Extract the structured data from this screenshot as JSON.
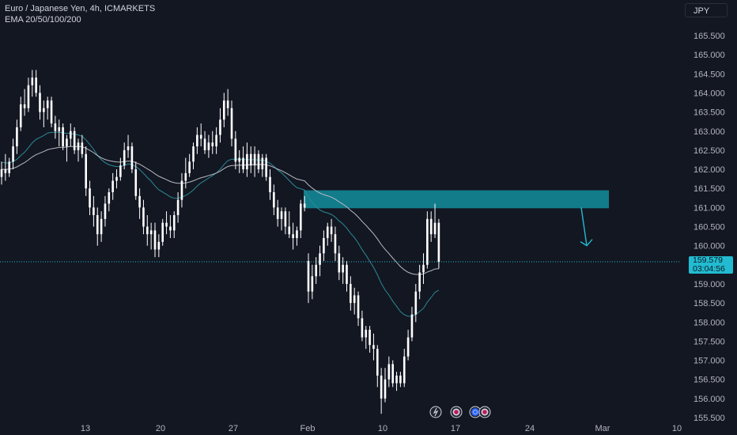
{
  "legend": {
    "symbol": "Euro / Japanese Yen, 4h, ICMARKETS",
    "indicator": "EMA 20/50/100/200"
  },
  "currency_button": "JPY",
  "price_tag": {
    "price": "159.579",
    "countdown": "03:04:56"
  },
  "colors": {
    "background": "#131722",
    "candle": "#ffffff",
    "zone": "#137c8b",
    "accent": "#22bbd1",
    "ema_fast": "#2a8a96",
    "ema_slow": "#b7bac4",
    "axis_text": "#b2b5be"
  },
  "event_icons": [
    "lightning-icon",
    "flag-icon",
    "globe-icon",
    "flag-icon"
  ],
  "chart_data": {
    "type": "candlestick",
    "y_ticks": [
      "165.500",
      "165.000",
      "164.500",
      "164.000",
      "163.500",
      "163.000",
      "162.500",
      "162.000",
      "161.500",
      "161.000",
      "160.500",
      "160.000",
      "159.500",
      "159.000",
      "158.500",
      "158.000",
      "157.500",
      "157.000",
      "156.500",
      "156.000",
      "155.500"
    ],
    "x_ticks": [
      "13",
      "20",
      "27",
      "Feb",
      "10",
      "17",
      "24",
      "Mar",
      "10"
    ],
    "ylim": [
      155.5,
      165.5
    ],
    "current_price": 159.579,
    "zone": {
      "from": 160.98,
      "to": 161.45
    },
    "projection": {
      "from": 161.0,
      "to": 160.0
    },
    "ohlc": [
      [
        161.8,
        162.2,
        161.6,
        162.0
      ],
      [
        162.0,
        162.4,
        161.7,
        161.9
      ],
      [
        161.9,
        162.3,
        161.8,
        162.2
      ],
      [
        162.2,
        162.8,
        162.0,
        162.6
      ],
      [
        162.6,
        163.3,
        162.4,
        163.1
      ],
      [
        163.1,
        163.9,
        163.0,
        163.7
      ],
      [
        163.7,
        164.1,
        163.4,
        163.6
      ],
      [
        163.6,
        164.4,
        163.5,
        164.2
      ],
      [
        164.2,
        164.6,
        163.9,
        164.4
      ],
      [
        164.4,
        164.6,
        163.9,
        164.0
      ],
      [
        164.0,
        164.2,
        163.3,
        163.5
      ],
      [
        163.5,
        163.8,
        163.1,
        163.6
      ],
      [
        163.6,
        163.9,
        163.3,
        163.8
      ],
      [
        163.8,
        163.9,
        163.1,
        163.2
      ],
      [
        163.2,
        163.4,
        162.8,
        163.0
      ],
      [
        163.0,
        163.3,
        162.6,
        163.1
      ],
      [
        163.1,
        163.2,
        162.5,
        162.6
      ],
      [
        162.6,
        162.9,
        162.2,
        162.8
      ],
      [
        162.8,
        163.2,
        162.6,
        163.0
      ],
      [
        163.0,
        163.1,
        162.4,
        162.5
      ],
      [
        162.5,
        162.8,
        162.2,
        162.7
      ],
      [
        162.7,
        162.9,
        162.3,
        162.4
      ],
      [
        162.4,
        162.6,
        161.3,
        161.5
      ],
      [
        161.5,
        161.7,
        160.8,
        161.0
      ],
      [
        161.0,
        161.3,
        160.5,
        160.8
      ],
      [
        160.8,
        161.0,
        160.0,
        160.3
      ],
      [
        160.3,
        160.9,
        160.1,
        160.7
      ],
      [
        160.7,
        161.3,
        160.5,
        161.1
      ],
      [
        161.1,
        161.5,
        160.9,
        161.4
      ],
      [
        161.4,
        161.9,
        161.2,
        161.7
      ],
      [
        161.7,
        162.0,
        161.5,
        161.8
      ],
      [
        161.8,
        162.3,
        161.7,
        162.1
      ],
      [
        162.1,
        162.7,
        162.0,
        162.5
      ],
      [
        162.5,
        162.9,
        162.3,
        162.6
      ],
      [
        162.6,
        162.7,
        161.9,
        162.0
      ],
      [
        162.0,
        162.2,
        161.2,
        161.3
      ],
      [
        161.3,
        161.5,
        160.7,
        161.0
      ],
      [
        161.0,
        161.2,
        160.3,
        160.5
      ],
      [
        160.5,
        160.8,
        160.0,
        160.3
      ],
      [
        160.3,
        160.6,
        159.9,
        160.4
      ],
      [
        160.4,
        160.6,
        159.7,
        159.9
      ],
      [
        159.9,
        160.3,
        159.7,
        160.1
      ],
      [
        160.1,
        160.7,
        160.0,
        160.6
      ],
      [
        160.6,
        160.9,
        160.3,
        160.5
      ],
      [
        160.5,
        160.8,
        160.2,
        160.4
      ],
      [
        160.4,
        160.9,
        160.2,
        160.8
      ],
      [
        160.8,
        161.4,
        160.6,
        161.2
      ],
      [
        161.2,
        161.9,
        161.0,
        161.7
      ],
      [
        161.7,
        162.3,
        161.5,
        161.9
      ],
      [
        161.9,
        162.4,
        161.8,
        162.2
      ],
      [
        162.2,
        162.7,
        162.0,
        162.6
      ],
      [
        162.6,
        163.1,
        162.4,
        162.9
      ],
      [
        162.9,
        163.2,
        162.6,
        162.8
      ],
      [
        162.8,
        163.0,
        162.4,
        162.5
      ],
      [
        162.5,
        162.9,
        162.3,
        162.7
      ],
      [
        162.7,
        163.0,
        162.4,
        162.6
      ],
      [
        162.6,
        163.1,
        162.4,
        162.9
      ],
      [
        162.9,
        163.6,
        162.7,
        163.3
      ],
      [
        163.3,
        164.0,
        163.1,
        163.8
      ],
      [
        163.8,
        164.1,
        163.4,
        163.6
      ],
      [
        163.6,
        163.8,
        162.6,
        162.8
      ],
      [
        162.8,
        163.0,
        162.0,
        162.2
      ],
      [
        162.2,
        162.5,
        161.9,
        162.3
      ],
      [
        162.3,
        162.6,
        161.9,
        162.0
      ],
      [
        162.0,
        162.7,
        161.8,
        162.4
      ],
      [
        162.4,
        162.6,
        161.9,
        162.1
      ],
      [
        162.1,
        162.6,
        161.8,
        162.4
      ],
      [
        162.4,
        162.5,
        161.9,
        162.0
      ],
      [
        162.0,
        162.4,
        161.8,
        162.3
      ],
      [
        162.3,
        162.4,
        161.7,
        161.8
      ],
      [
        161.8,
        162.0,
        161.2,
        161.4
      ],
      [
        161.4,
        161.6,
        160.8,
        161.0
      ],
      [
        161.0,
        161.2,
        160.5,
        160.7
      ],
      [
        160.7,
        161.0,
        160.4,
        160.9
      ],
      [
        160.9,
        161.0,
        160.3,
        160.5
      ],
      [
        160.5,
        160.9,
        160.2,
        160.3
      ],
      [
        160.3,
        160.6,
        159.9,
        160.2
      ],
      [
        160.2,
        160.5,
        160.0,
        160.4
      ],
      [
        160.4,
        161.2,
        160.2,
        161.1
      ],
      [
        161.1,
        161.3,
        160.9,
        161.0
      ],
      [
        159.6,
        159.8,
        158.5,
        158.8
      ],
      [
        158.8,
        159.5,
        158.6,
        159.2
      ],
      [
        159.2,
        159.7,
        159.0,
        159.5
      ],
      [
        159.5,
        160.0,
        159.2,
        159.8
      ],
      [
        159.8,
        160.4,
        159.6,
        160.2
      ],
      [
        160.2,
        160.6,
        160.0,
        160.5
      ],
      [
        160.5,
        160.7,
        160.1,
        160.3
      ],
      [
        160.3,
        160.5,
        159.6,
        159.8
      ],
      [
        159.8,
        160.0,
        159.1,
        159.3
      ],
      [
        159.3,
        159.7,
        159.0,
        159.5
      ],
      [
        159.5,
        159.6,
        158.8,
        159.0
      ],
      [
        159.0,
        159.2,
        158.3,
        158.5
      ],
      [
        158.5,
        158.9,
        158.2,
        158.7
      ],
      [
        158.7,
        158.8,
        157.9,
        158.1
      ],
      [
        158.1,
        158.3,
        157.5,
        157.6
      ],
      [
        157.6,
        157.9,
        157.3,
        157.8
      ],
      [
        157.8,
        157.9,
        157.2,
        157.4
      ],
      [
        157.4,
        157.7,
        157.0,
        157.3
      ],
      [
        157.3,
        157.4,
        156.3,
        156.6
      ],
      [
        156.6,
        156.8,
        155.6,
        156.0
      ],
      [
        156.0,
        156.8,
        155.9,
        156.5
      ],
      [
        156.5,
        157.1,
        156.3,
        156.9
      ],
      [
        156.9,
        157.0,
        156.3,
        156.4
      ],
      [
        156.4,
        156.7,
        156.2,
        156.6
      ],
      [
        156.6,
        156.7,
        156.3,
        156.4
      ],
      [
        156.4,
        157.3,
        156.3,
        157.1
      ],
      [
        157.1,
        157.8,
        157.0,
        157.6
      ],
      [
        157.6,
        158.4,
        157.5,
        158.2
      ],
      [
        158.2,
        159.0,
        158.0,
        158.8
      ],
      [
        158.8,
        159.5,
        158.6,
        159.3
      ],
      [
        159.3,
        159.8,
        159.0,
        159.5
      ],
      [
        159.5,
        160.9,
        159.4,
        160.7
      ],
      [
        160.7,
        160.9,
        160.1,
        160.3
      ],
      [
        160.3,
        161.1,
        160.2,
        160.6
      ],
      [
        160.6,
        160.7,
        159.4,
        159.58
      ]
    ]
  }
}
